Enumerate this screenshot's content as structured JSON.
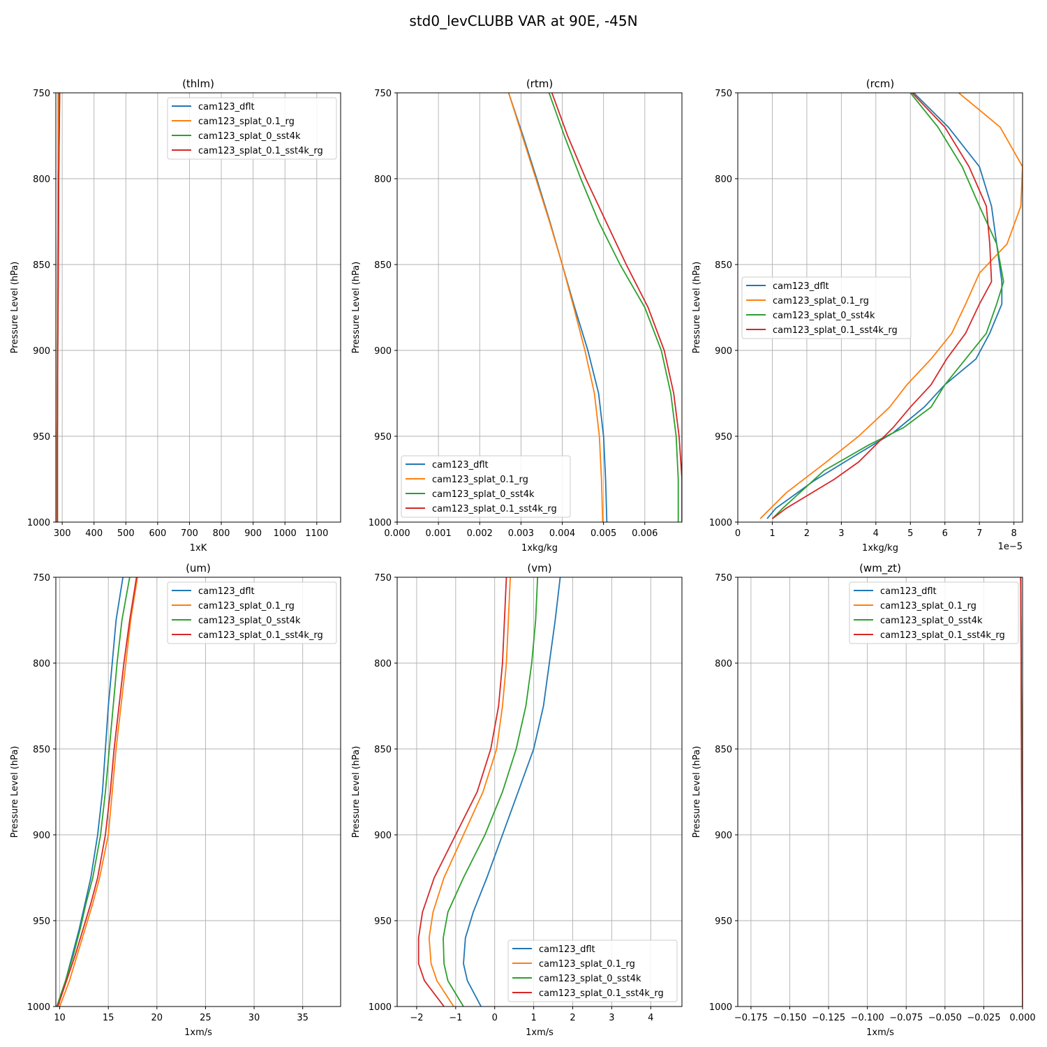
{
  "figure": {
    "title": "std0_levCLUBB VAR at 90E, -45N"
  },
  "legend_entries": [
    "cam123_dflt",
    "cam123_splat_0.1_rg",
    "cam123_splat_0_sst4k",
    "cam123_splat_0.1_sst4k_rg"
  ],
  "colors": {
    "cam123_dflt": "#1f77b4",
    "cam123_splat_0.1_rg": "#ff7f0e",
    "cam123_splat_0_sst4k": "#2ca02c",
    "cam123_splat_0.1_sst4k_rg": "#d62728"
  },
  "chart_data": [
    {
      "type": "line",
      "title": "(thlm)",
      "xlabel": "1xK",
      "ylabel": "Pressure Level (hPa)",
      "xlim": [
        280,
        1175
      ],
      "ylim": [
        1000,
        750
      ],
      "xticks": [
        300,
        400,
        500,
        600,
        700,
        800,
        900,
        1000,
        1100
      ],
      "xticklabels": [
        "300",
        "400",
        "500",
        "600",
        "700",
        "800",
        "900",
        "1000",
        "1100"
      ],
      "yticks": [
        750,
        800,
        850,
        900,
        950,
        1000
      ],
      "grid": true,
      "legend_loc": "upper right",
      "y": [
        750,
        800,
        850,
        900,
        950,
        1000
      ],
      "series": [
        {
          "name": "cam123_dflt",
          "x": [
            290,
            287,
            286,
            285,
            284,
            284
          ]
        },
        {
          "name": "cam123_splat_0.1_rg",
          "x": [
            287,
            287,
            286,
            285,
            284,
            284
          ]
        },
        {
          "name": "cam123_splat_0_sst4k",
          "x": [
            292,
            289,
            288,
            286,
            285,
            285
          ]
        },
        {
          "name": "cam123_splat_0.1_sst4k_rg",
          "x": [
            292,
            289,
            288,
            286,
            285,
            285
          ]
        }
      ]
    },
    {
      "type": "line",
      "title": "(rtm)",
      "xlabel": "1xkg/kg",
      "ylabel": "Pressure Level (hPa)",
      "xlim": [
        0,
        0.0069
      ],
      "ylim": [
        1000,
        750
      ],
      "xticks": [
        0,
        0.001,
        0.002,
        0.003,
        0.004,
        0.005,
        0.006
      ],
      "xticklabels": [
        "0.000",
        "0.001",
        "0.002",
        "0.003",
        "0.004",
        "0.005",
        "0.006"
      ],
      "yticks": [
        750,
        800,
        850,
        900,
        950,
        1000
      ],
      "grid": true,
      "legend_loc": "lower left",
      "y": [
        750,
        775,
        800,
        825,
        850,
        875,
        900,
        925,
        950,
        975,
        1000
      ],
      "series": [
        {
          "name": "cam123_dflt",
          "x": [
            0.0027,
            0.00305,
            0.00338,
            0.0037,
            0.004,
            0.0043,
            0.00462,
            0.00488,
            0.005,
            0.00505,
            0.00508
          ]
        },
        {
          "name": "cam123_splat_0.1_rg",
          "x": [
            0.0027,
            0.00303,
            0.00336,
            0.00369,
            0.004,
            0.00428,
            0.00455,
            0.00478,
            0.0049,
            0.00495,
            0.00498
          ]
        },
        {
          "name": "cam123_splat_0_sst4k",
          "x": [
            0.00368,
            0.00405,
            0.00445,
            0.00488,
            0.0054,
            0.006,
            0.0064,
            0.00663,
            0.00676,
            0.00681,
            0.00681
          ]
        },
        {
          "name": "cam123_splat_0.1_sst4k_rg",
          "x": [
            0.00375,
            0.00413,
            0.00457,
            0.00506,
            0.00555,
            0.00608,
            0.00647,
            0.0067,
            0.00683,
            0.0069,
            0.0069
          ]
        }
      ]
    },
    {
      "type": "line",
      "title": "(rcm)",
      "xlabel": "1xkg/kg",
      "ylabel": "Pressure Level (hPa)",
      "offset_text": "1e−5",
      "xlim": [
        0,
        8.25
      ],
      "ylim": [
        1000,
        750
      ],
      "xticks": [
        0,
        1,
        2,
        3,
        4,
        5,
        6,
        7,
        8
      ],
      "xticklabels": [
        "0",
        "1",
        "2",
        "3",
        "4",
        "5",
        "6",
        "7",
        "8"
      ],
      "yticks": [
        750,
        800,
        850,
        900,
        950,
        1000
      ],
      "grid": true,
      "legend_loc": "center left",
      "series": [
        {
          "name": "cam123_dflt",
          "x": [
            5.1,
            6.1,
            7.0,
            7.35,
            7.5,
            7.65,
            7.65,
            7.3,
            6.9,
            6.0,
            5.4,
            4.5,
            3.5,
            2.2,
            1.1,
            0.85
          ],
          "y": [
            750,
            770,
            793,
            816,
            838,
            860,
            873,
            890,
            905,
            920,
            933,
            948,
            960,
            976,
            992,
            998
          ]
        },
        {
          "name": "cam123_splat_0.1_rg",
          "x": [
            6.4,
            7.6,
            8.25,
            8.2,
            7.8,
            7.0,
            6.6,
            6.2,
            5.6,
            4.9,
            4.4,
            3.5,
            2.5,
            1.4,
            0.95,
            0.65
          ],
          "y": [
            750,
            770,
            793,
            816,
            838,
            855,
            873,
            890,
            905,
            920,
            933,
            950,
            966,
            983,
            992,
            998
          ]
        },
        {
          "name": "cam123_splat_0_sst4k",
          "x": [
            5.0,
            5.8,
            6.5,
            7.0,
            7.5,
            7.7,
            7.5,
            7.2,
            6.6,
            6.0,
            5.6,
            4.8,
            3.8,
            2.5,
            1.3,
            1.0
          ],
          "y": [
            750,
            770,
            793,
            816,
            838,
            860,
            873,
            890,
            905,
            920,
            933,
            945,
            955,
            970,
            992,
            998
          ]
        },
        {
          "name": "cam123_splat_0.1_sst4k_rg",
          "x": [
            5.05,
            6.0,
            6.7,
            7.2,
            7.3,
            7.35,
            7.0,
            6.6,
            6.05,
            5.6,
            5.0,
            4.5,
            3.5,
            2.8,
            1.4,
            1.0
          ],
          "y": [
            750,
            770,
            793,
            816,
            838,
            860,
            873,
            890,
            905,
            920,
            933,
            945,
            965,
            975,
            992,
            998
          ]
        }
      ]
    },
    {
      "type": "line",
      "title": "(um)",
      "xlabel": "1xm/s",
      "ylabel": "Pressure Level (hPa)",
      "xlim": [
        9.6,
        38.9
      ],
      "ylim": [
        1000,
        750
      ],
      "xticks": [
        10,
        15,
        20,
        25,
        30,
        35
      ],
      "xticklabels": [
        "10",
        "15",
        "20",
        "25",
        "30",
        "35"
      ],
      "yticks": [
        750,
        800,
        850,
        900,
        950,
        1000
      ],
      "grid": true,
      "legend_loc": "upper right",
      "y": [
        750,
        775,
        800,
        825,
        850,
        875,
        900,
        925,
        940,
        955,
        970,
        985,
        1000
      ],
      "series": [
        {
          "name": "cam123_dflt",
          "x": [
            16.5,
            15.8,
            15.4,
            15.0,
            14.7,
            14.4,
            13.9,
            13.2,
            12.6,
            12.0,
            11.3,
            10.6,
            9.7
          ]
        },
        {
          "name": "cam123_splat_0.1_rg",
          "x": [
            18.0,
            17.3,
            16.8,
            16.3,
            15.8,
            15.4,
            15.0,
            14.1,
            13.4,
            12.6,
            11.8,
            11.0,
            10.0
          ]
        },
        {
          "name": "cam123_splat_0_sst4k",
          "x": [
            17.2,
            16.4,
            15.9,
            15.5,
            15.1,
            14.7,
            14.2,
            13.4,
            12.7,
            12.1,
            11.4,
            10.6,
            9.7
          ]
        },
        {
          "name": "cam123_splat_0.1_sst4k_rg",
          "x": [
            17.9,
            17.2,
            16.6,
            16.1,
            15.6,
            15.2,
            14.7,
            13.9,
            13.2,
            12.4,
            11.6,
            10.7,
            9.8
          ]
        }
      ]
    },
    {
      "type": "line",
      "title": "(vm)",
      "xlabel": "1xm/s",
      "ylabel": "Pressure Level (hPa)",
      "xlim": [
        -2.5,
        4.8
      ],
      "ylim": [
        1000,
        750
      ],
      "xticks": [
        -2,
        -1,
        0,
        1,
        2,
        3,
        4
      ],
      "xticklabels": [
        "−2",
        "−1",
        "0",
        "1",
        "2",
        "3",
        "4"
      ],
      "yticks": [
        750,
        800,
        850,
        900,
        950,
        1000
      ],
      "grid": true,
      "legend_loc": "lower right",
      "y": [
        750,
        775,
        800,
        825,
        850,
        875,
        900,
        925,
        945,
        960,
        975,
        985,
        1000
      ],
      "series": [
        {
          "name": "cam123_dflt",
          "x": [
            1.68,
            1.55,
            1.4,
            1.25,
            1.0,
            0.6,
            0.2,
            -0.2,
            -0.55,
            -0.75,
            -0.8,
            -0.7,
            -0.35
          ]
        },
        {
          "name": "cam123_splat_0.1_rg",
          "x": [
            0.4,
            0.35,
            0.3,
            0.2,
            0.05,
            -0.3,
            -0.8,
            -1.3,
            -1.58,
            -1.68,
            -1.63,
            -1.48,
            -1.05
          ]
        },
        {
          "name": "cam123_splat_0_sst4k",
          "x": [
            1.1,
            1.05,
            0.95,
            0.8,
            0.55,
            0.2,
            -0.25,
            -0.8,
            -1.2,
            -1.32,
            -1.3,
            -1.2,
            -0.8
          ]
        },
        {
          "name": "cam123_splat_0.1_sst4k_rg",
          "x": [
            0.3,
            0.25,
            0.2,
            0.1,
            -0.1,
            -0.45,
            -1.0,
            -1.55,
            -1.85,
            -1.95,
            -1.95,
            -1.8,
            -1.3
          ]
        }
      ]
    },
    {
      "type": "line",
      "title": "(wm_zt)",
      "xlabel": "1xm/s",
      "ylabel": "Pressure Level (hPa)",
      "xlim": [
        -0.1835,
        0.0
      ],
      "ylim": [
        1000,
        750
      ],
      "xticks": [
        -0.175,
        -0.15,
        -0.125,
        -0.1,
        -0.075,
        -0.05,
        -0.025,
        0.0
      ],
      "xticklabels": [
        "−0.175",
        "−0.150",
        "−0.125",
        "−0.100",
        "−0.075",
        "−0.050",
        "−0.025",
        "0.000"
      ],
      "yticks": [
        750,
        800,
        850,
        900,
        950,
        1000
      ],
      "grid": true,
      "legend_loc": "upper right",
      "y": [
        750,
        800,
        850,
        900,
        950,
        1000
      ],
      "series": [
        {
          "name": "cam123_dflt",
          "x": [
            -0.0012,
            -0.0009,
            -0.0007,
            -0.0004,
            -0.0002,
            0.0
          ]
        },
        {
          "name": "cam123_splat_0.1_rg",
          "x": [
            -0.0011,
            -0.0009,
            -0.0006,
            -0.0004,
            -0.0002,
            0.0
          ]
        },
        {
          "name": "cam123_splat_0_sst4k",
          "x": [
            -0.0012,
            -0.0009,
            -0.0007,
            -0.0004,
            -0.0002,
            0.0
          ]
        },
        {
          "name": "cam123_splat_0.1_sst4k_rg",
          "x": [
            -0.0012,
            -0.0009,
            -0.0007,
            -0.0004,
            -0.0002,
            0.0
          ]
        }
      ]
    }
  ]
}
